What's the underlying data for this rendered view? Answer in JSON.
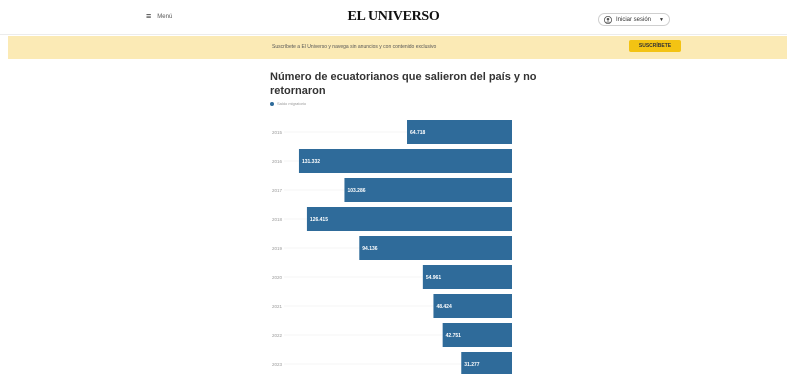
{
  "header": {
    "menu_label": "Menú",
    "logo_text": "EL UNIVERSO",
    "account_label": "Iniciar sesión"
  },
  "banner": {
    "message": "Suscríbete a El Universo y navega sin anuncios y con contenido exclusivo",
    "cta_label": "SUSCRÍBETE"
  },
  "article": {
    "chart_title": "Número de ecuatorianos que salieron del país y no retornaron"
  },
  "chart_data": {
    "type": "bar",
    "orientation": "horizontal",
    "title": "Número de ecuatorianos que salieron del país y no retornaron",
    "legend": [
      "Saldo migratorio"
    ],
    "categories": [
      "2015",
      "2016",
      "2017",
      "2018",
      "2019",
      "2020",
      "2021",
      "2022",
      "2023"
    ],
    "values": [
      64718,
      131332,
      103286,
      126415,
      94136,
      54961,
      48424,
      42751,
      31277
    ],
    "value_labels": [
      "64.718",
      "131.332",
      "103.286",
      "126.415",
      "94.136",
      "54.961",
      "48.424",
      "42.751",
      "31.277"
    ],
    "bar_color": "#2f6b9a",
    "xlim": [
      0,
      135000
    ],
    "grid": false,
    "bars_anchored": "right"
  }
}
